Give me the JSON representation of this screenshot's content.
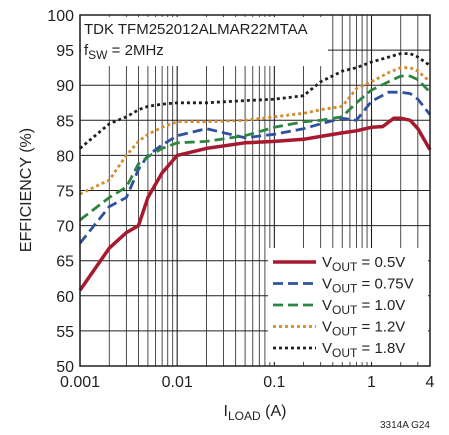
{
  "chart_data": {
    "type": "line",
    "annotation": {
      "line1": "TDK TFM252012ALMAR22MTAA",
      "line2_prefix": "f",
      "line2_sub": "SW",
      "line2_suffix": " = 2MHz"
    },
    "xlabel": {
      "prefix": "I",
      "sub": "LOAD",
      "suffix": " (A)"
    },
    "ylabel": "EFFICIENCY (%)",
    "figure_id": "3314A G24",
    "x_scale": "log",
    "xlim": [
      0.001,
      4
    ],
    "ylim": [
      50,
      100
    ],
    "x_ticks": [
      {
        "value": 0.001,
        "label": "0.001"
      },
      {
        "value": 0.01,
        "label": "0.01"
      },
      {
        "value": 0.1,
        "label": "0.1"
      },
      {
        "value": 1,
        "label": "1"
      },
      {
        "value": 4,
        "label": "4"
      }
    ],
    "y_ticks": [
      {
        "value": 50,
        "label": "50"
      },
      {
        "value": 55,
        "label": "55"
      },
      {
        "value": 60,
        "label": "60"
      },
      {
        "value": 65,
        "label": "65"
      },
      {
        "value": 70,
        "label": "70"
      },
      {
        "value": 75,
        "label": "75"
      },
      {
        "value": 80,
        "label": "80"
      },
      {
        "value": 85,
        "label": "85"
      },
      {
        "value": 90,
        "label": "90"
      },
      {
        "value": 95,
        "label": "95"
      },
      {
        "value": 100,
        "label": "100"
      }
    ],
    "grid": true,
    "legend_position": "bottom-right",
    "series": [
      {
        "name": "V_OUT = 0.5V",
        "legend": {
          "prefix": "V",
          "sub": "OUT",
          "suffix": " = 0.5V"
        },
        "color": "#a6192e",
        "style": "solid",
        "x": [
          0.001,
          0.002,
          0.003,
          0.004,
          0.005,
          0.007,
          0.01,
          0.02,
          0.05,
          0.1,
          0.2,
          0.3,
          0.5,
          0.7,
          1.0,
          1.3,
          1.7,
          2.0,
          2.5,
          3.0,
          4.0
        ],
        "y": [
          60.8,
          66.8,
          69.0,
          70.0,
          74.0,
          77.5,
          80.0,
          81.0,
          81.8,
          82.0,
          82.3,
          82.7,
          83.2,
          83.5,
          84.0,
          84.1,
          85.3,
          85.3,
          85.0,
          83.8,
          80.8
        ]
      },
      {
        "name": "V_OUT = 0.75V",
        "legend": {
          "prefix": "V",
          "sub": "OUT",
          "suffix": " = 0.75V"
        },
        "color": "#2f52a0",
        "style": "dash",
        "x": [
          0.001,
          0.002,
          0.003,
          0.004,
          0.005,
          0.007,
          0.01,
          0.02,
          0.05,
          0.1,
          0.2,
          0.3,
          0.5,
          0.7,
          1.0,
          1.5,
          2.0,
          2.5,
          3.0,
          4.0
        ],
        "y": [
          67.5,
          72.7,
          74.0,
          78.0,
          80.0,
          81.5,
          82.8,
          83.8,
          82.5,
          83.0,
          83.8,
          84.5,
          85.3,
          85.0,
          87.7,
          89.0,
          89.0,
          88.8,
          88.0,
          85.8
        ]
      },
      {
        "name": "V_OUT = 1.0V",
        "legend": {
          "prefix": "V",
          "sub": "OUT",
          "suffix": " = 1.0V"
        },
        "color": "#2e8540",
        "style": "dash",
        "x": [
          0.001,
          0.002,
          0.003,
          0.004,
          0.005,
          0.007,
          0.01,
          0.02,
          0.05,
          0.1,
          0.2,
          0.3,
          0.5,
          0.7,
          1.0,
          1.5,
          2.0,
          2.5,
          3.0,
          4.0
        ],
        "y": [
          70.8,
          74.0,
          75.5,
          78.8,
          79.8,
          81.0,
          81.8,
          82.0,
          82.8,
          84.0,
          84.8,
          85.0,
          85.5,
          87.5,
          89.3,
          90.5,
          91.3,
          91.3,
          90.8,
          89.0
        ]
      },
      {
        "name": "V_OUT = 1.2V",
        "legend": {
          "prefix": "V",
          "sub": "OUT",
          "suffix": " = 1.2V"
        },
        "color": "#d58a2c",
        "style": "dot",
        "x": [
          0.001,
          0.002,
          0.003,
          0.004,
          0.005,
          0.007,
          0.01,
          0.02,
          0.05,
          0.1,
          0.2,
          0.3,
          0.5,
          0.7,
          1.0,
          1.5,
          2.0,
          2.5,
          3.0,
          4.0
        ],
        "y": [
          74.5,
          76.5,
          80.0,
          82.0,
          83.0,
          84.0,
          84.8,
          84.8,
          85.0,
          85.5,
          86.0,
          86.5,
          87.0,
          89.5,
          90.5,
          91.8,
          92.5,
          92.5,
          92.0,
          90.5
        ]
      },
      {
        "name": "V_OUT = 1.8V",
        "legend": {
          "prefix": "V",
          "sub": "OUT",
          "suffix": " = 1.8V"
        },
        "color": "#231f20",
        "style": "dot",
        "x": [
          0.001,
          0.002,
          0.003,
          0.004,
          0.005,
          0.007,
          0.01,
          0.02,
          0.05,
          0.1,
          0.2,
          0.3,
          0.5,
          0.7,
          1.0,
          1.5,
          2.0,
          2.5,
          3.0,
          4.0
        ],
        "y": [
          81.0,
          84.5,
          85.5,
          86.5,
          87.0,
          87.3,
          87.5,
          87.5,
          87.8,
          88.0,
          88.5,
          90.5,
          92.0,
          92.5,
          93.3,
          94.0,
          94.5,
          94.5,
          94.0,
          92.8
        ]
      }
    ]
  }
}
